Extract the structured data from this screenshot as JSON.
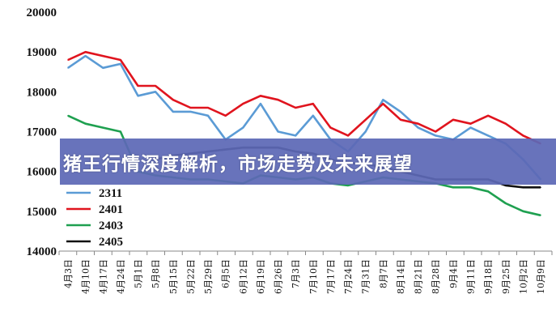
{
  "banner": {
    "title": "猪王行情深度解析，市场走势及未来展望"
  },
  "chart_data": {
    "type": "line",
    "title": "",
    "xlabel": "",
    "ylabel": "",
    "ylim": [
      14000,
      20000
    ],
    "yticks": [
      14000,
      15000,
      16000,
      17000,
      18000,
      19000,
      20000
    ],
    "grid": false,
    "legend_placement": "left",
    "categories": [
      "4月3日",
      "4月10日",
      "4月17日",
      "4月24日",
      "5月1日",
      "5月8日",
      "5月15日",
      "5月22日",
      "5月29日",
      "6月5日",
      "6月12日",
      "6月19日",
      "6月26日",
      "7月3日",
      "7月10日",
      "7月17日",
      "7月24日",
      "7月31日",
      "8月7日",
      "8月14日",
      "8月21日",
      "8月28日",
      "9月4日",
      "9月11日",
      "9月18日",
      "9月25日",
      "10月2日",
      "10月9日"
    ],
    "series": [
      {
        "name": "2311",
        "color": "#5b9bd5",
        "values": [
          18600,
          18900,
          18600,
          18700,
          17900,
          18000,
          17500,
          17500,
          17400,
          16800,
          17100,
          17700,
          17000,
          16900,
          17400,
          16800,
          16500,
          17000,
          17800,
          17500,
          17100,
          16900,
          16800,
          17100,
          16900,
          16700,
          16300,
          15800
        ]
      },
      {
        "name": "2401",
        "color": "#e0141e",
        "values": [
          18800,
          19000,
          18900,
          18800,
          18150,
          18150,
          17800,
          17600,
          17600,
          17400,
          17700,
          17900,
          17800,
          17600,
          17700,
          17100,
          16900,
          17300,
          17700,
          17300,
          17200,
          17000,
          17300,
          17200,
          17400,
          17200,
          16900,
          16700
        ]
      },
      {
        "name": "2403",
        "color": "#1fa050",
        "values": [
          17400,
          17200,
          17100,
          17000,
          16000,
          15900,
          15850,
          15800,
          15800,
          15750,
          15700,
          15900,
          15850,
          15800,
          15850,
          15700,
          15650,
          15750,
          15850,
          15800,
          15750,
          15700,
          15600,
          15600,
          15500,
          15200,
          15000,
          14900
        ]
      },
      {
        "name": "2405",
        "color": "#111111",
        "values": [
          null,
          null,
          null,
          null,
          null,
          16300,
          16400,
          16450,
          16500,
          16550,
          16600,
          16600,
          16600,
          16500,
          16450,
          16300,
          16200,
          16200,
          16100,
          16000,
          15900,
          15800,
          15800,
          15800,
          15800,
          15650,
          15600,
          15600
        ]
      }
    ]
  }
}
